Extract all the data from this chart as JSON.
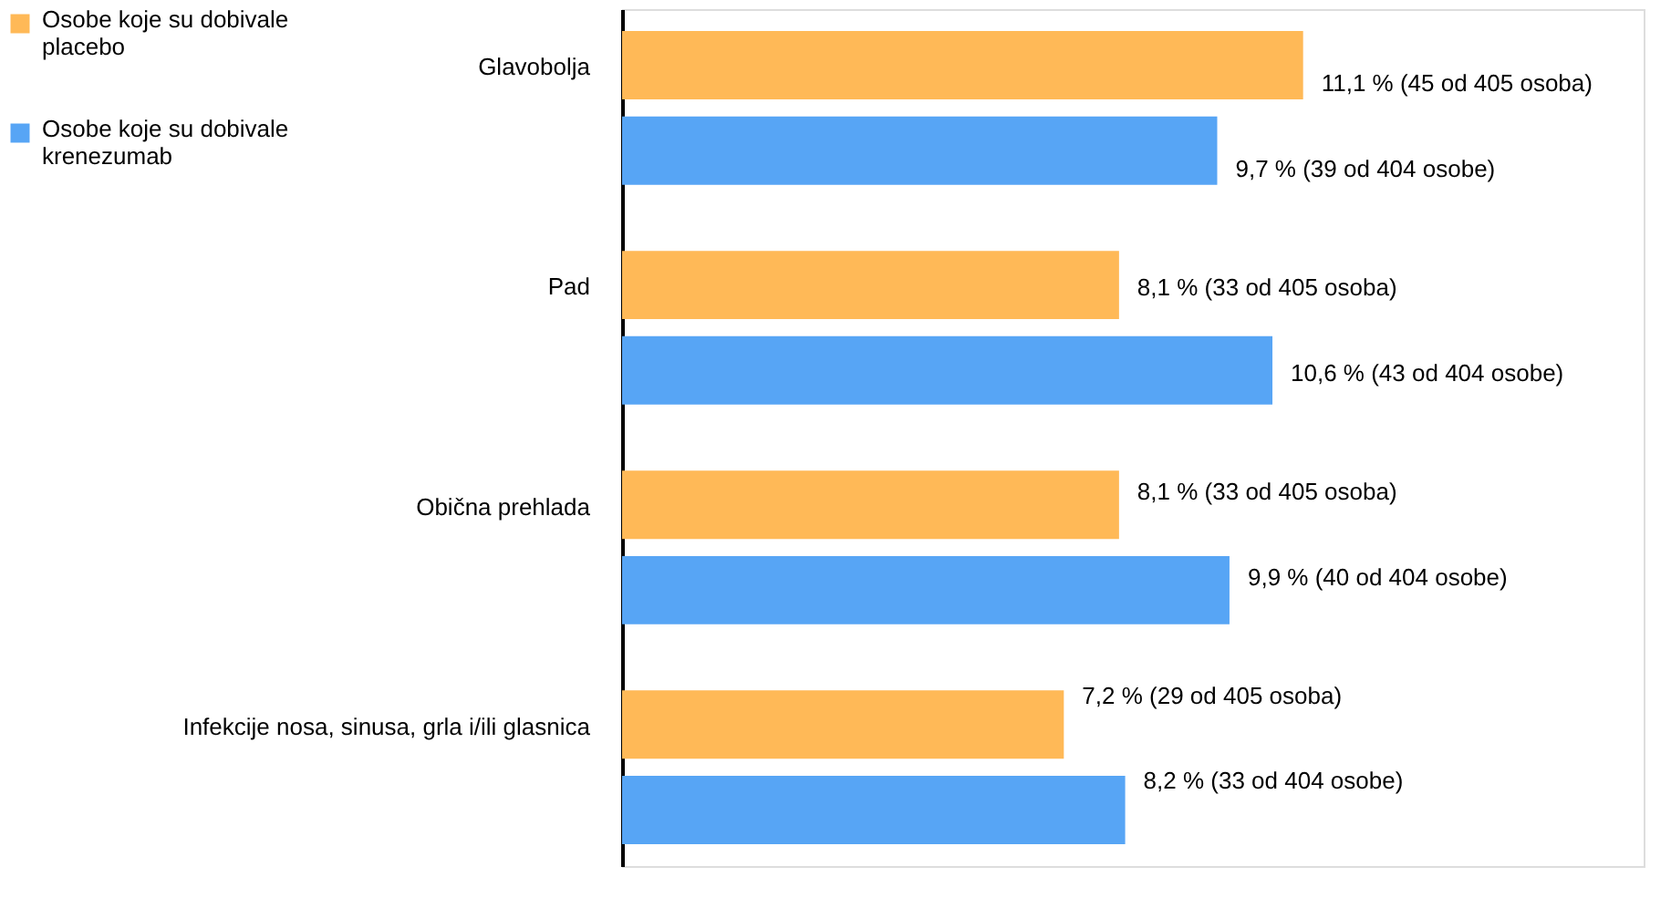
{
  "chart_data": {
    "type": "bar",
    "orientation": "horizontal",
    "legend": "top left",
    "categories": [
      "Glavobolja",
      "Pad",
      "Obična prehlada",
      "Infekcije nosa, sinusa, grla i/ili glasnica"
    ],
    "series": [
      {
        "name": "Osobe koje su dobivale placebo",
        "color": "#ffb957",
        "values": [
          11.1,
          8.1,
          8.1,
          7.2
        ],
        "value_labels": [
          "11,1 % (45 od 405 osoba)",
          "8,1 % (33 od 405 osoba)",
          "8,1 % (33 od 405 osoba)",
          "7,2 % (29 od 405 osoba)"
        ]
      },
      {
        "name": "Osobe koje su dobivale krenezumab",
        "color": "#57a5f5",
        "values": [
          9.7,
          10.6,
          9.9,
          8.2
        ],
        "value_labels": [
          "9,7 % (39 od 404 osobe)",
          "10,6 % (43 od 404 osobe)",
          "9,9 % (40 od 404 osobe)",
          "8,2 % (33 od 404 osobe)"
        ]
      }
    ]
  }
}
